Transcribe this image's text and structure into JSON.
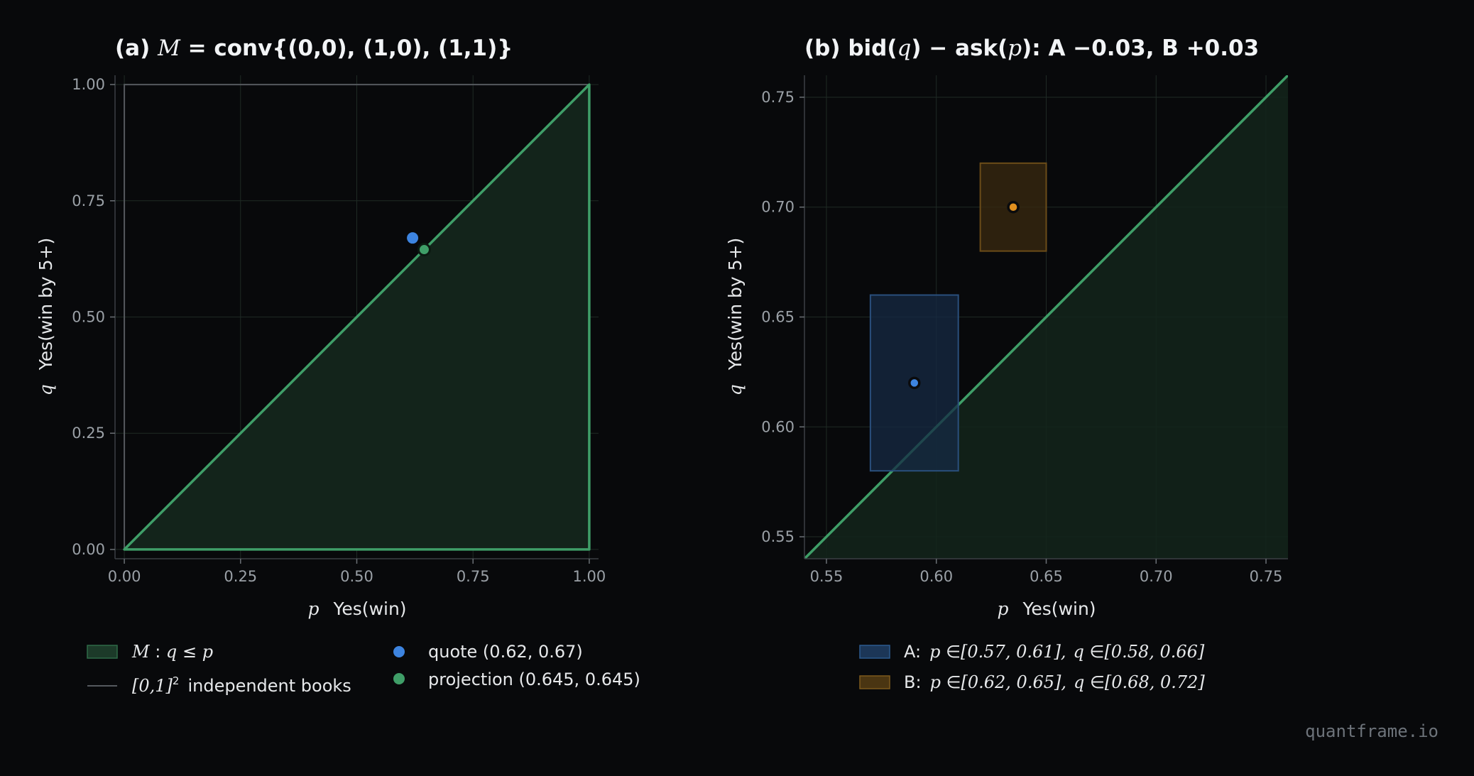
{
  "watermark": "quantframe.io",
  "colors": {
    "background": "#08090b",
    "green": "#3f9e68",
    "green_fill": "#13241b",
    "blue": "#3d84e0",
    "orange": "#e0901f",
    "grid": "#1f2a25",
    "spine": "#3a3f44",
    "square": "#55595e",
    "tick_text": "#9aa0a6"
  },
  "chart_data": [
    {
      "panel": "a",
      "type": "scatter",
      "title_prefix": "(a) ",
      "title_var": "M",
      "title_rest": " = conv{(0,0), (1,0), (1,1)}",
      "xlabel_var": "p",
      "xlabel": "Yes(win)",
      "ylabel_var": "q",
      "ylabel": "Yes(win by 5+)",
      "xlim": [
        -0.02,
        1.02
      ],
      "ylim": [
        -0.02,
        1.02
      ],
      "xticks": [
        "0.00",
        "0.25",
        "0.50",
        "0.75",
        "1.00"
      ],
      "yticks": [
        "0.00",
        "0.25",
        "0.50",
        "0.75",
        "1.00"
      ],
      "xtick_values": [
        0,
        0.25,
        0.5,
        0.75,
        1.0
      ],
      "ytick_values": [
        0,
        0.25,
        0.5,
        0.75,
        1.0
      ],
      "grid": true,
      "polygon": [
        [
          0,
          0
        ],
        [
          1,
          0
        ],
        [
          1,
          1
        ]
      ],
      "unit_square": [
        [
          0,
          0
        ],
        [
          1,
          0
        ],
        [
          1,
          1
        ],
        [
          0,
          1
        ]
      ],
      "points": [
        {
          "x": 0.62,
          "y": 0.67,
          "color": "#3d84e0"
        },
        {
          "x": 0.645,
          "y": 0.645,
          "color": "#3f9e68"
        }
      ],
      "legend": {
        "placement": "below",
        "region_var": "M",
        "region_cond_var1": "q",
        "region_cond_op": "≤",
        "region_cond_var2": "p",
        "square_math": "[0,1]",
        "square_exp": "2",
        "square_text": "independent books",
        "quote": "quote (0.62, 0.67)",
        "projection": "projection (0.645, 0.645)"
      }
    },
    {
      "panel": "b",
      "type": "scatter",
      "title_prefix": "(b) bid(",
      "title_var1": "q",
      "title_mid": ") − ask(",
      "title_var2": "p",
      "title_rest": "):  A −0.03,  B +0.03",
      "xlabel_var": "p",
      "xlabel": "Yes(win)",
      "ylabel_var": "q",
      "ylabel": "Yes(win by 5+)",
      "xlim": [
        0.54,
        0.76
      ],
      "ylim": [
        0.54,
        0.76
      ],
      "xticks": [
        "0.55",
        "0.60",
        "0.65",
        "0.70",
        "0.75"
      ],
      "yticks": [
        "0.55",
        "0.60",
        "0.65",
        "0.70",
        "0.75"
      ],
      "xtick_values": [
        0.55,
        0.6,
        0.65,
        0.7,
        0.75
      ],
      "ytick_values": [
        0.55,
        0.6,
        0.65,
        0.7,
        0.75
      ],
      "grid": true,
      "diagonal": true,
      "boxes": [
        {
          "name": "A",
          "p": [
            0.57,
            0.61
          ],
          "q": [
            0.58,
            0.66
          ],
          "center": [
            0.59,
            0.62
          ],
          "color": "#3d84e0"
        },
        {
          "name": "B",
          "p": [
            0.62,
            0.65
          ],
          "q": [
            0.68,
            0.72
          ],
          "center": [
            0.635,
            0.7
          ],
          "color": "#e0901f"
        }
      ],
      "legend": {
        "placement": "below",
        "a_name": "A:",
        "a_p": "[0.57, 0.61],",
        "a_q": "[0.58, 0.66]",
        "b_name": "B:",
        "b_p": "[0.62, 0.65],",
        "b_q": "[0.68, 0.72]",
        "var_p": "p",
        "var_q": "q",
        "in_sym": "∈"
      }
    }
  ]
}
